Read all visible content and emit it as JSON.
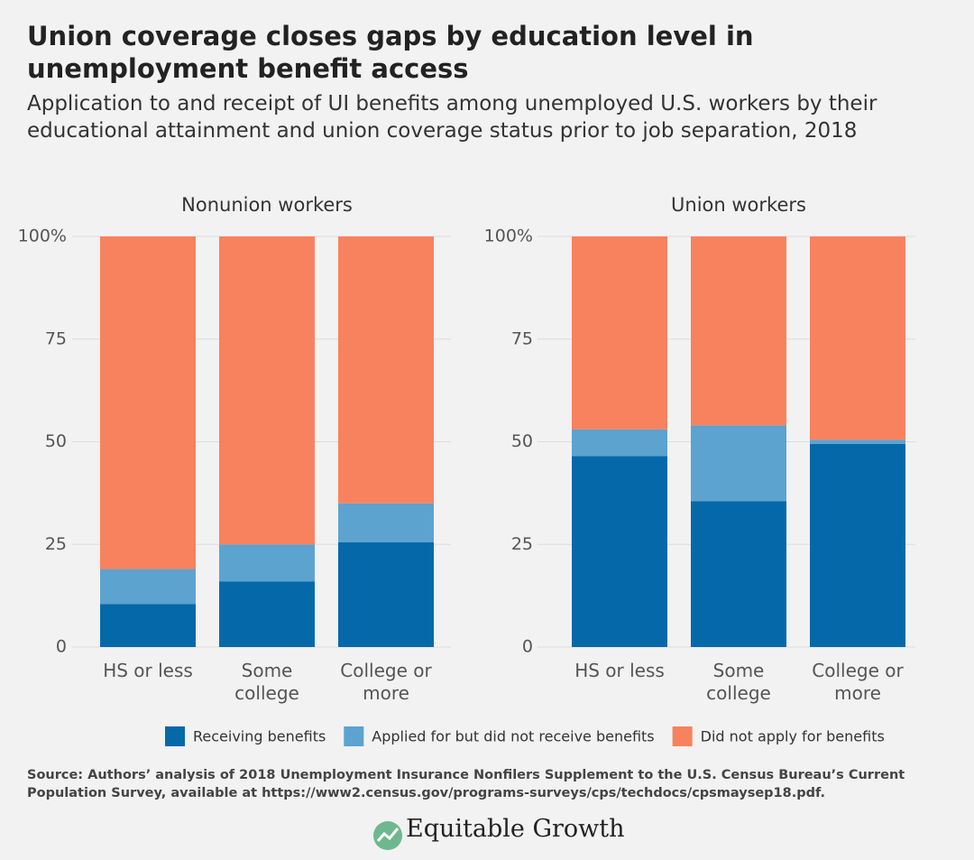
{
  "title": "Union coverage closes gaps by education level in unemployment benefit access",
  "subtitle": "Application to and receipt of UI benefits among unemployed U.S. workers by their educational attainment and union coverage status prior to job separation, 2018",
  "source": "Source: Authors’ analysis of 2018 Unemployment Insurance Nonfilers Supplement to the U.S. Census Bureau’s Current Population Survey, available at https://www2.census.gov/programs-surveys/cps/techdocs/cpsmaysep18.pdf.",
  "logo": "Equitable Growth",
  "chart_data": [
    {
      "type": "bar",
      "stacked": true,
      "title": "Nonunion workers",
      "categories": [
        "HS or less",
        "Some college",
        "College or more"
      ],
      "series": [
        {
          "name": "Receiving benefits",
          "color": "#0569a9",
          "values": [
            10.5,
            16,
            25.5
          ]
        },
        {
          "name": "Applied for but did not receive benefits",
          "color": "#5ca3cf",
          "values": [
            8.5,
            9,
            9.5
          ]
        },
        {
          "name": "Did not apply for benefits",
          "color": "#f8825e",
          "values": [
            81,
            75,
            65
          ]
        }
      ],
      "ylim": [
        0,
        100
      ],
      "yticks": [
        0,
        25,
        50,
        75,
        {
          "value": 100,
          "label": "100%"
        }
      ],
      "grid": true,
      "legend": "bottom"
    },
    {
      "type": "bar",
      "stacked": true,
      "title": "Union workers",
      "categories": [
        "HS or less",
        "Some college",
        "College or more"
      ],
      "series": [
        {
          "name": "Receiving benefits",
          "color": "#0569a9",
          "values": [
            46.5,
            35.5,
            49.5
          ]
        },
        {
          "name": "Applied for but did not receive benefits",
          "color": "#5ca3cf",
          "values": [
            6.5,
            18.5,
            1
          ]
        },
        {
          "name": "Did not apply for benefits",
          "color": "#f8825e",
          "values": [
            47,
            46,
            49.5
          ]
        }
      ],
      "ylim": [
        0,
        100
      ],
      "yticks": [
        0,
        25,
        50,
        75,
        {
          "value": 100,
          "label": "100%"
        }
      ],
      "grid": true
    }
  ]
}
